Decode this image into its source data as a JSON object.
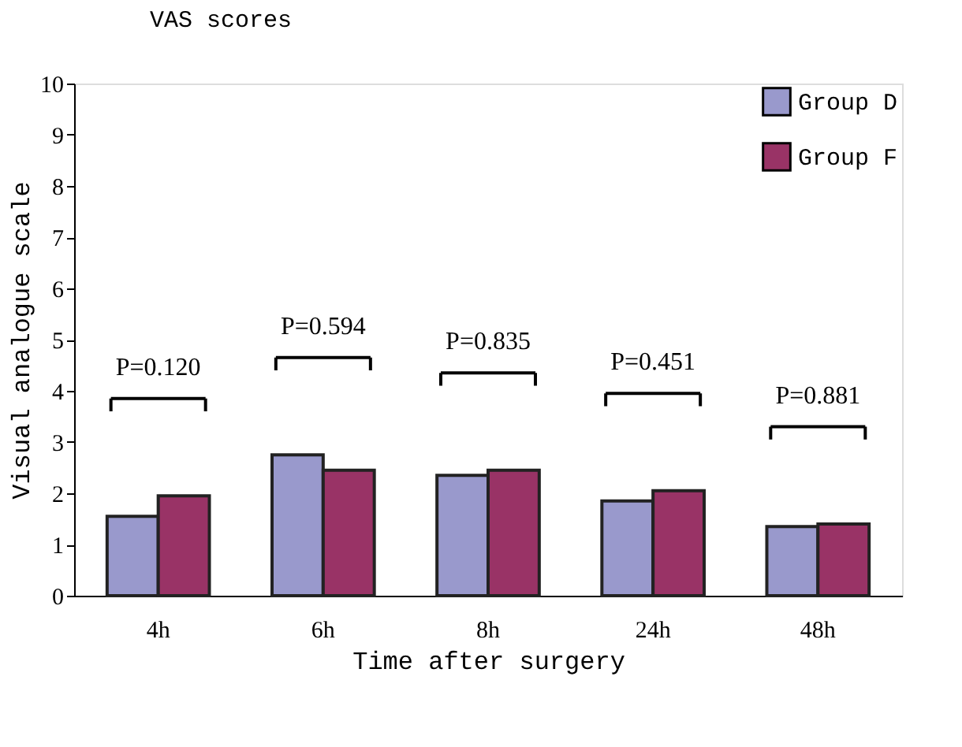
{
  "chart_data": {
    "type": "bar",
    "title": "VAS scores",
    "xlabel": "Time after surgery",
    "ylabel": "Visual analogue scale",
    "categories": [
      "4h",
      "6h",
      "8h",
      "24h",
      "48h"
    ],
    "series": [
      {
        "name": "Group D",
        "color": "#9999cc",
        "values": [
          1.55,
          2.75,
          2.35,
          1.85,
          1.35
        ]
      },
      {
        "name": "Group F",
        "color": "#993366",
        "values": [
          1.95,
          2.45,
          2.45,
          2.05,
          1.4
        ]
      }
    ],
    "ylim": [
      0,
      10
    ],
    "yticks": [
      0,
      1,
      2,
      3,
      4,
      5,
      6,
      7,
      8,
      9,
      10
    ],
    "grid": false,
    "legend": "top right",
    "annotations": [
      "P=0.120",
      "P=0.594",
      "P=0.835",
      "P=0.451",
      "P=0.881"
    ]
  }
}
